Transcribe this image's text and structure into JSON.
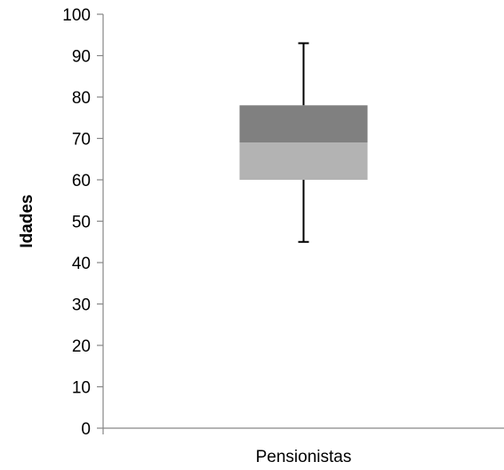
{
  "chart_data": {
    "type": "boxplot",
    "ylabel": "Idades",
    "xlabel": "",
    "ylim": [
      0,
      100
    ],
    "yticks": [
      0,
      10,
      20,
      30,
      40,
      50,
      60,
      70,
      80,
      90,
      100
    ],
    "categories": [
      "Pensionistas"
    ],
    "boxes": [
      {
        "category": "Pensionistas",
        "min": 45,
        "q1": 60,
        "median": 69,
        "q3": 78,
        "max": 93
      }
    ],
    "grid": false,
    "colors": {
      "lower_box": "#b3b3b3",
      "upper_box": "#808080",
      "axis": "#868686",
      "whisker": "#000000"
    }
  }
}
